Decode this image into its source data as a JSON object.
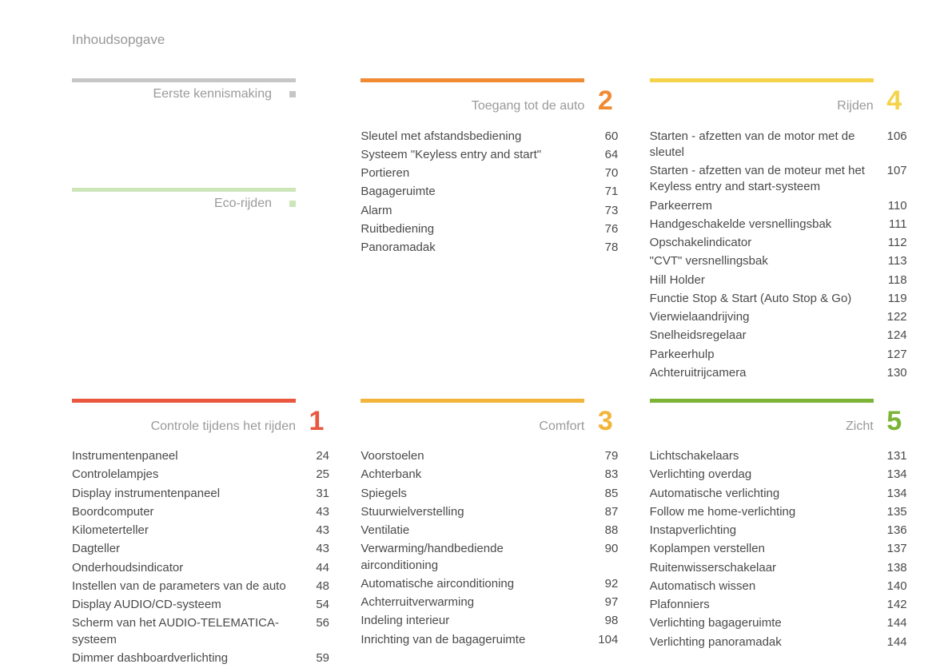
{
  "page_title": "Inhoudsopgave",
  "colors": {
    "gray_bar": "#c6c6c6",
    "gray_square": "#c6c6c6",
    "green_light_bar": "#cce6b9",
    "green_light_square": "#cce6b9",
    "red": "#e9573f",
    "orange": "#f08a33",
    "amber": "#f3b43a",
    "yellow": "#f4d34a",
    "green": "#7bb437",
    "title_text": "#989898",
    "body_text": "#4a4a4a"
  },
  "sections": {
    "intro1": {
      "title": "Eerste kennismaking",
      "bar_color_key": "gray_bar",
      "square_color_key": "gray_square"
    },
    "intro2": {
      "title": "Eco-rijden",
      "bar_color_key": "green_light_bar",
      "square_color_key": "green_light_square"
    },
    "s1": {
      "number": "1",
      "title": "Controle tijdens het rijden",
      "color_key": "red",
      "entries": [
        {
          "label": "Instrumentenpaneel",
          "page": "24"
        },
        {
          "label": "Controlelampjes",
          "page": "25"
        },
        {
          "label": "Display instrumentenpaneel",
          "page": "31"
        },
        {
          "label": "Boordcomputer",
          "page": "43"
        },
        {
          "label": "Kilometerteller",
          "page": "43"
        },
        {
          "label": "Dagteller",
          "page": "43"
        },
        {
          "label": "Onderhoudsindicator",
          "page": "44"
        },
        {
          "label": "Instellen van de parameters van de auto",
          "page": "48"
        },
        {
          "label": "Display AUDIO/CD-systeem",
          "page": "54"
        },
        {
          "label": "Scherm van het AUDIO-TELEMATICA-systeem",
          "page": "56"
        },
        {
          "label": "Dimmer dashboardverlichting",
          "page": "59"
        }
      ]
    },
    "s2": {
      "number": "2",
      "title": "Toegang tot de auto",
      "color_key": "orange",
      "entries": [
        {
          "label": "Sleutel met afstandsbediening",
          "page": "60"
        },
        {
          "label": "Systeem \"Keyless entry and start\"",
          "page": "64"
        },
        {
          "label": "Portieren",
          "page": "70"
        },
        {
          "label": "Bagageruimte",
          "page": "71"
        },
        {
          "label": "Alarm",
          "page": "73"
        },
        {
          "label": "Ruitbediening",
          "page": "76"
        },
        {
          "label": "Panoramadak",
          "page": "78"
        }
      ]
    },
    "s3": {
      "number": "3",
      "title": "Comfort",
      "color_key": "amber",
      "entries": [
        {
          "label": "Voorstoelen",
          "page": "79"
        },
        {
          "label": "Achterbank",
          "page": "83"
        },
        {
          "label": "Spiegels",
          "page": "85"
        },
        {
          "label": "Stuurwielverstelling",
          "page": "87"
        },
        {
          "label": "Ventilatie",
          "page": "88"
        },
        {
          "label": "Verwarming/handbediende airconditioning",
          "page": "90"
        },
        {
          "label": "Automatische airconditioning",
          "page": "92"
        },
        {
          "label": "Achterruitverwarming",
          "page": "97"
        },
        {
          "label": "Indeling interieur",
          "page": "98"
        },
        {
          "label": "Inrichting van de bagageruimte",
          "page": "104"
        }
      ]
    },
    "s4": {
      "number": "4",
      "title": "Rijden",
      "color_key": "yellow",
      "entries": [
        {
          "label": "Starten - afzetten van de motor met de sleutel",
          "page": "106"
        },
        {
          "label": "Starten - afzetten van de moteur met het Keyless entry and start-systeem",
          "page": "107"
        },
        {
          "label": "Parkeerrem",
          "page": "110"
        },
        {
          "label": "Handgeschakelde versnellingsbak",
          "page": "111"
        },
        {
          "label": "Opschakelindicator",
          "page": "112"
        },
        {
          "label": "\"CVT\" versnellingsbak",
          "page": "113"
        },
        {
          "label": "Hill Holder",
          "page": "118"
        },
        {
          "label": "Functie Stop & Start (Auto Stop & Go)",
          "page": "119"
        },
        {
          "label": "Vierwielaandrijving",
          "page": "122"
        },
        {
          "label": "Snelheidsregelaar",
          "page": "124"
        },
        {
          "label": "Parkeerhulp",
          "page": "127"
        },
        {
          "label": "Achteruitrijcamera",
          "page": "130"
        }
      ]
    },
    "s5": {
      "number": "5",
      "title": "Zicht",
      "color_key": "green",
      "entries": [
        {
          "label": "Lichtschakelaars",
          "page": "131"
        },
        {
          "label": "Verlichting overdag",
          "page": "134"
        },
        {
          "label": "Automatische verlichting",
          "page": "134"
        },
        {
          "label": "Follow me home-verlichting",
          "page": "135"
        },
        {
          "label": "Instapverlichting",
          "page": "136"
        },
        {
          "label": "Koplampen verstellen",
          "page": "137"
        },
        {
          "label": "Ruitenwisserschakelaar",
          "page": "138"
        },
        {
          "label": "Automatisch wissen",
          "page": "140"
        },
        {
          "label": "Plafonniers",
          "page": "142"
        },
        {
          "label": "Verlichting bagageruimte",
          "page": "144"
        },
        {
          "label": "Verlichting panoramadak",
          "page": "144"
        }
      ]
    }
  }
}
